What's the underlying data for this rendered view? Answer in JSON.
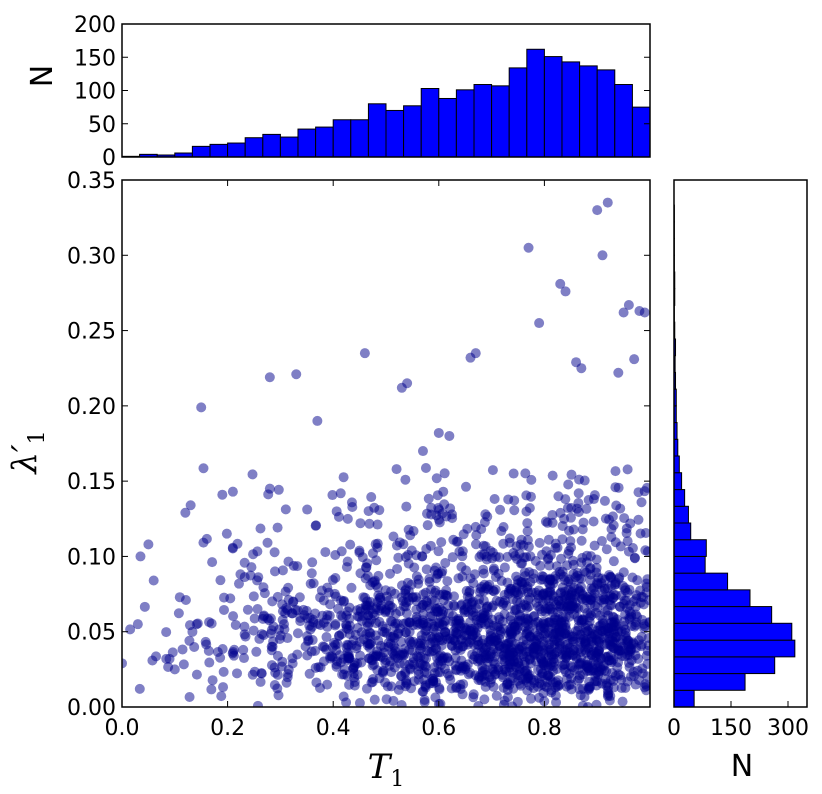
{
  "chart_data": [
    {
      "type": "bar",
      "panel": "top-histogram",
      "orientation": "vertical",
      "ylabel": "N",
      "xlim": [
        0.0,
        1.0
      ],
      "ylim": [
        0,
        200
      ],
      "yticks": [
        "0",
        "50",
        "100",
        "150",
        "200"
      ],
      "bin_edges": [
        0.0,
        0.0333,
        0.0667,
        0.1,
        0.1333,
        0.1667,
        0.2,
        0.2333,
        0.2667,
        0.3,
        0.3333,
        0.3667,
        0.4,
        0.4333,
        0.4667,
        0.5,
        0.5333,
        0.5667,
        0.6,
        0.6333,
        0.6667,
        0.7,
        0.7333,
        0.7667,
        0.8,
        0.8333,
        0.8667,
        0.9,
        0.9333,
        0.9667,
        1.0
      ],
      "values": [
        1,
        4,
        3,
        6,
        16,
        19,
        21,
        29,
        34,
        30,
        42,
        45,
        56,
        56,
        80,
        70,
        77,
        103,
        88,
        101,
        109,
        107,
        134,
        162,
        151,
        143,
        137,
        131,
        109,
        75
      ],
      "color": "#0000ff"
    },
    {
      "type": "scatter",
      "panel": "main",
      "xlabel": "T_1",
      "ylabel": "λ'_1",
      "xlim": [
        0.0,
        1.0
      ],
      "ylim": [
        0.0,
        0.35
      ],
      "xticks": [
        "0.0",
        "0.2",
        "0.4",
        "0.6",
        "0.8"
      ],
      "yticks": [
        "0.00",
        "0.05",
        "0.10",
        "0.15",
        "0.20",
        "0.25",
        "0.30",
        "0.35"
      ],
      "point_color": "#00008b",
      "point_alpha": 0.5,
      "n_points_estimated": 2000,
      "outliers": [
        {
          "x": 0.0,
          "y": 0.029
        },
        {
          "x": 0.03,
          "y": 0.055
        },
        {
          "x": 0.035,
          "y": 0.1
        },
        {
          "x": 0.05,
          "y": 0.108
        },
        {
          "x": 0.06,
          "y": 0.084
        },
        {
          "x": 0.09,
          "y": 0.032
        },
        {
          "x": 0.1,
          "y": 0.025
        },
        {
          "x": 0.12,
          "y": 0.129
        },
        {
          "x": 0.13,
          "y": 0.134
        },
        {
          "x": 0.15,
          "y": 0.199
        },
        {
          "x": 0.19,
          "y": 0.141
        },
        {
          "x": 0.21,
          "y": 0.143
        },
        {
          "x": 0.28,
          "y": 0.219
        },
        {
          "x": 0.28,
          "y": 0.145
        },
        {
          "x": 0.33,
          "y": 0.221
        },
        {
          "x": 0.37,
          "y": 0.19
        },
        {
          "x": 0.46,
          "y": 0.235
        },
        {
          "x": 0.53,
          "y": 0.212
        },
        {
          "x": 0.54,
          "y": 0.215
        },
        {
          "x": 0.66,
          "y": 0.232
        },
        {
          "x": 0.67,
          "y": 0.235
        },
        {
          "x": 0.77,
          "y": 0.305
        },
        {
          "x": 0.79,
          "y": 0.255
        },
        {
          "x": 0.83,
          "y": 0.281
        },
        {
          "x": 0.84,
          "y": 0.276
        },
        {
          "x": 0.86,
          "y": 0.229
        },
        {
          "x": 0.87,
          "y": 0.225
        },
        {
          "x": 0.9,
          "y": 0.33
        },
        {
          "x": 0.91,
          "y": 0.3
        },
        {
          "x": 0.92,
          "y": 0.335
        },
        {
          "x": 0.94,
          "y": 0.222
        },
        {
          "x": 0.95,
          "y": 0.262
        },
        {
          "x": 0.96,
          "y": 0.267
        },
        {
          "x": 0.97,
          "y": 0.231
        },
        {
          "x": 0.98,
          "y": 0.263
        },
        {
          "x": 0.99,
          "y": 0.262
        },
        {
          "x": 0.6,
          "y": 0.182
        },
        {
          "x": 0.62,
          "y": 0.18
        },
        {
          "x": 0.52,
          "y": 0.158
        },
        {
          "x": 0.57,
          "y": 0.17
        }
      ]
    },
    {
      "type": "bar",
      "panel": "right-histogram",
      "orientation": "horizontal",
      "xlabel": "N",
      "xlim": [
        0,
        350
      ],
      "xticks": [
        "0",
        "150",
        "300"
      ],
      "ylim": [
        0.0,
        0.35
      ],
      "bin_edges": [
        0.0,
        0.0111,
        0.0222,
        0.0333,
        0.0444,
        0.0556,
        0.0667,
        0.0778,
        0.0889,
        0.1,
        0.1111,
        0.1222,
        0.1333,
        0.1444,
        0.1556,
        0.1667,
        0.1778,
        0.1889,
        0.2,
        0.2111,
        0.2222,
        0.2333,
        0.2444,
        0.2556,
        0.2667,
        0.2778,
        0.2889,
        0.3,
        0.3111,
        0.3222,
        0.3333
      ],
      "values": [
        53,
        187,
        265,
        318,
        310,
        257,
        200,
        141,
        82,
        85,
        44,
        38,
        28,
        20,
        14,
        10,
        8,
        6,
        6,
        4,
        3,
        4,
        2,
        1,
        2,
        2,
        1,
        1,
        1,
        1
      ],
      "color": "#0000ff"
    }
  ]
}
